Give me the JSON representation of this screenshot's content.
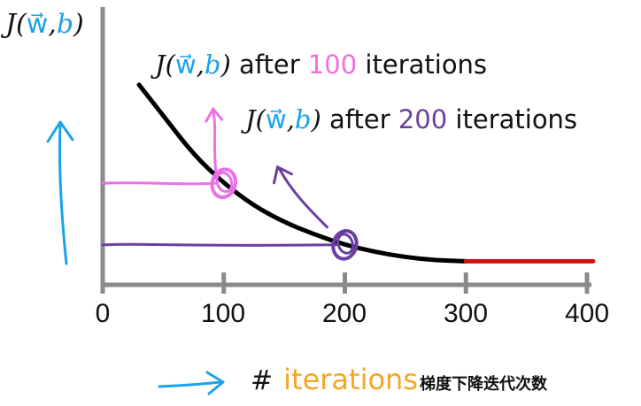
{
  "chart_data": {
    "type": "line",
    "ylabel_fn": "J(",
    "ylabel_w": "w⃗",
    "ylabel_sep": ",",
    "ylabel_b": "b",
    "ylabel_close": ")",
    "xlabel_hash": "#",
    "xlabel": "iterations",
    "xlabel_cn": "梯度下降迭代次数",
    "x_ticks": [
      "0",
      "100",
      "200",
      "300",
      "400"
    ],
    "xlim": [
      0,
      400
    ],
    "series": [
      {
        "x": [
          30,
          50,
          75,
          100,
          125,
          150,
          175,
          200,
          225,
          250,
          275,
          300,
          340,
          380,
          405
        ],
        "y": [
          0.88,
          0.73,
          0.54,
          0.4,
          0.29,
          0.21,
          0.15,
          0.1,
          0.065,
          0.04,
          0.025,
          0.02,
          0.02,
          0.02,
          0.02
        ]
      }
    ],
    "annotations": [
      {
        "prefix": "after",
        "iterations": "100",
        "suffix": "iterations",
        "color": "#ec6fe8",
        "x": 100,
        "y": 0.4
      },
      {
        "prefix": "after",
        "iterations": "200",
        "suffix": "iterations",
        "color": "#6a3fa0",
        "x": 200,
        "y": 0.1
      }
    ],
    "colors": {
      "curve": "#000000",
      "converged": "#cc1111",
      "pink": "#ec6fe8",
      "purple": "#6a3fa0",
      "arrow": "#1aa3e8"
    }
  }
}
